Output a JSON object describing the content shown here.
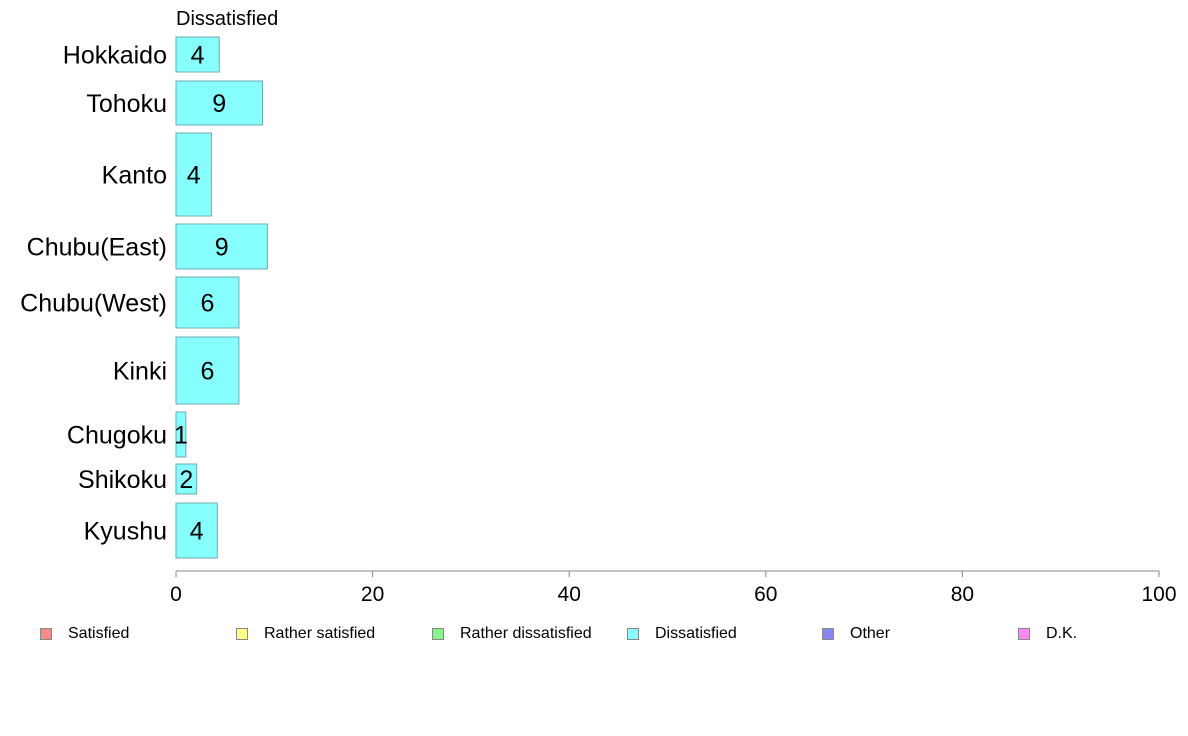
{
  "chart_data": {
    "type": "bar",
    "orientation": "horizontal",
    "title": "Dissatisfied",
    "xlabel": "",
    "ylabel": "",
    "xlim": [
      0,
      100
    ],
    "xticks": [
      0,
      20,
      40,
      60,
      80,
      100
    ],
    "grid": false,
    "categories": [
      "Hokkaido",
      "Tohoku",
      "Kanto",
      "Chubu(East)",
      "Chubu(West)",
      "Kinki",
      "Chugoku",
      "Shikoku",
      "Kyushu"
    ],
    "values": [
      4.4,
      8.8,
      3.6,
      9.3,
      6.4,
      6.4,
      1.0,
      2.1,
      4.2
    ],
    "data_labels": [
      "4",
      "9",
      "4",
      "9",
      "6",
      "6",
      "1",
      "2",
      "4"
    ],
    "bar_color": "#88ffff",
    "bar_edge_color": "#6fa9b0",
    "legend": {
      "placement": "bottom",
      "entries": [
        {
          "label": "Satisfied",
          "color": "#f58c8c"
        },
        {
          "label": "Rather satisfied",
          "color": "#ffff88"
        },
        {
          "label": "Rather dissatisfied",
          "color": "#88f588"
        },
        {
          "label": "Dissatisfied",
          "color": "#88ffff"
        },
        {
          "label": "Other",
          "color": "#8888f0"
        },
        {
          "label": "D.K.",
          "color": "#ff88f0"
        }
      ]
    }
  }
}
